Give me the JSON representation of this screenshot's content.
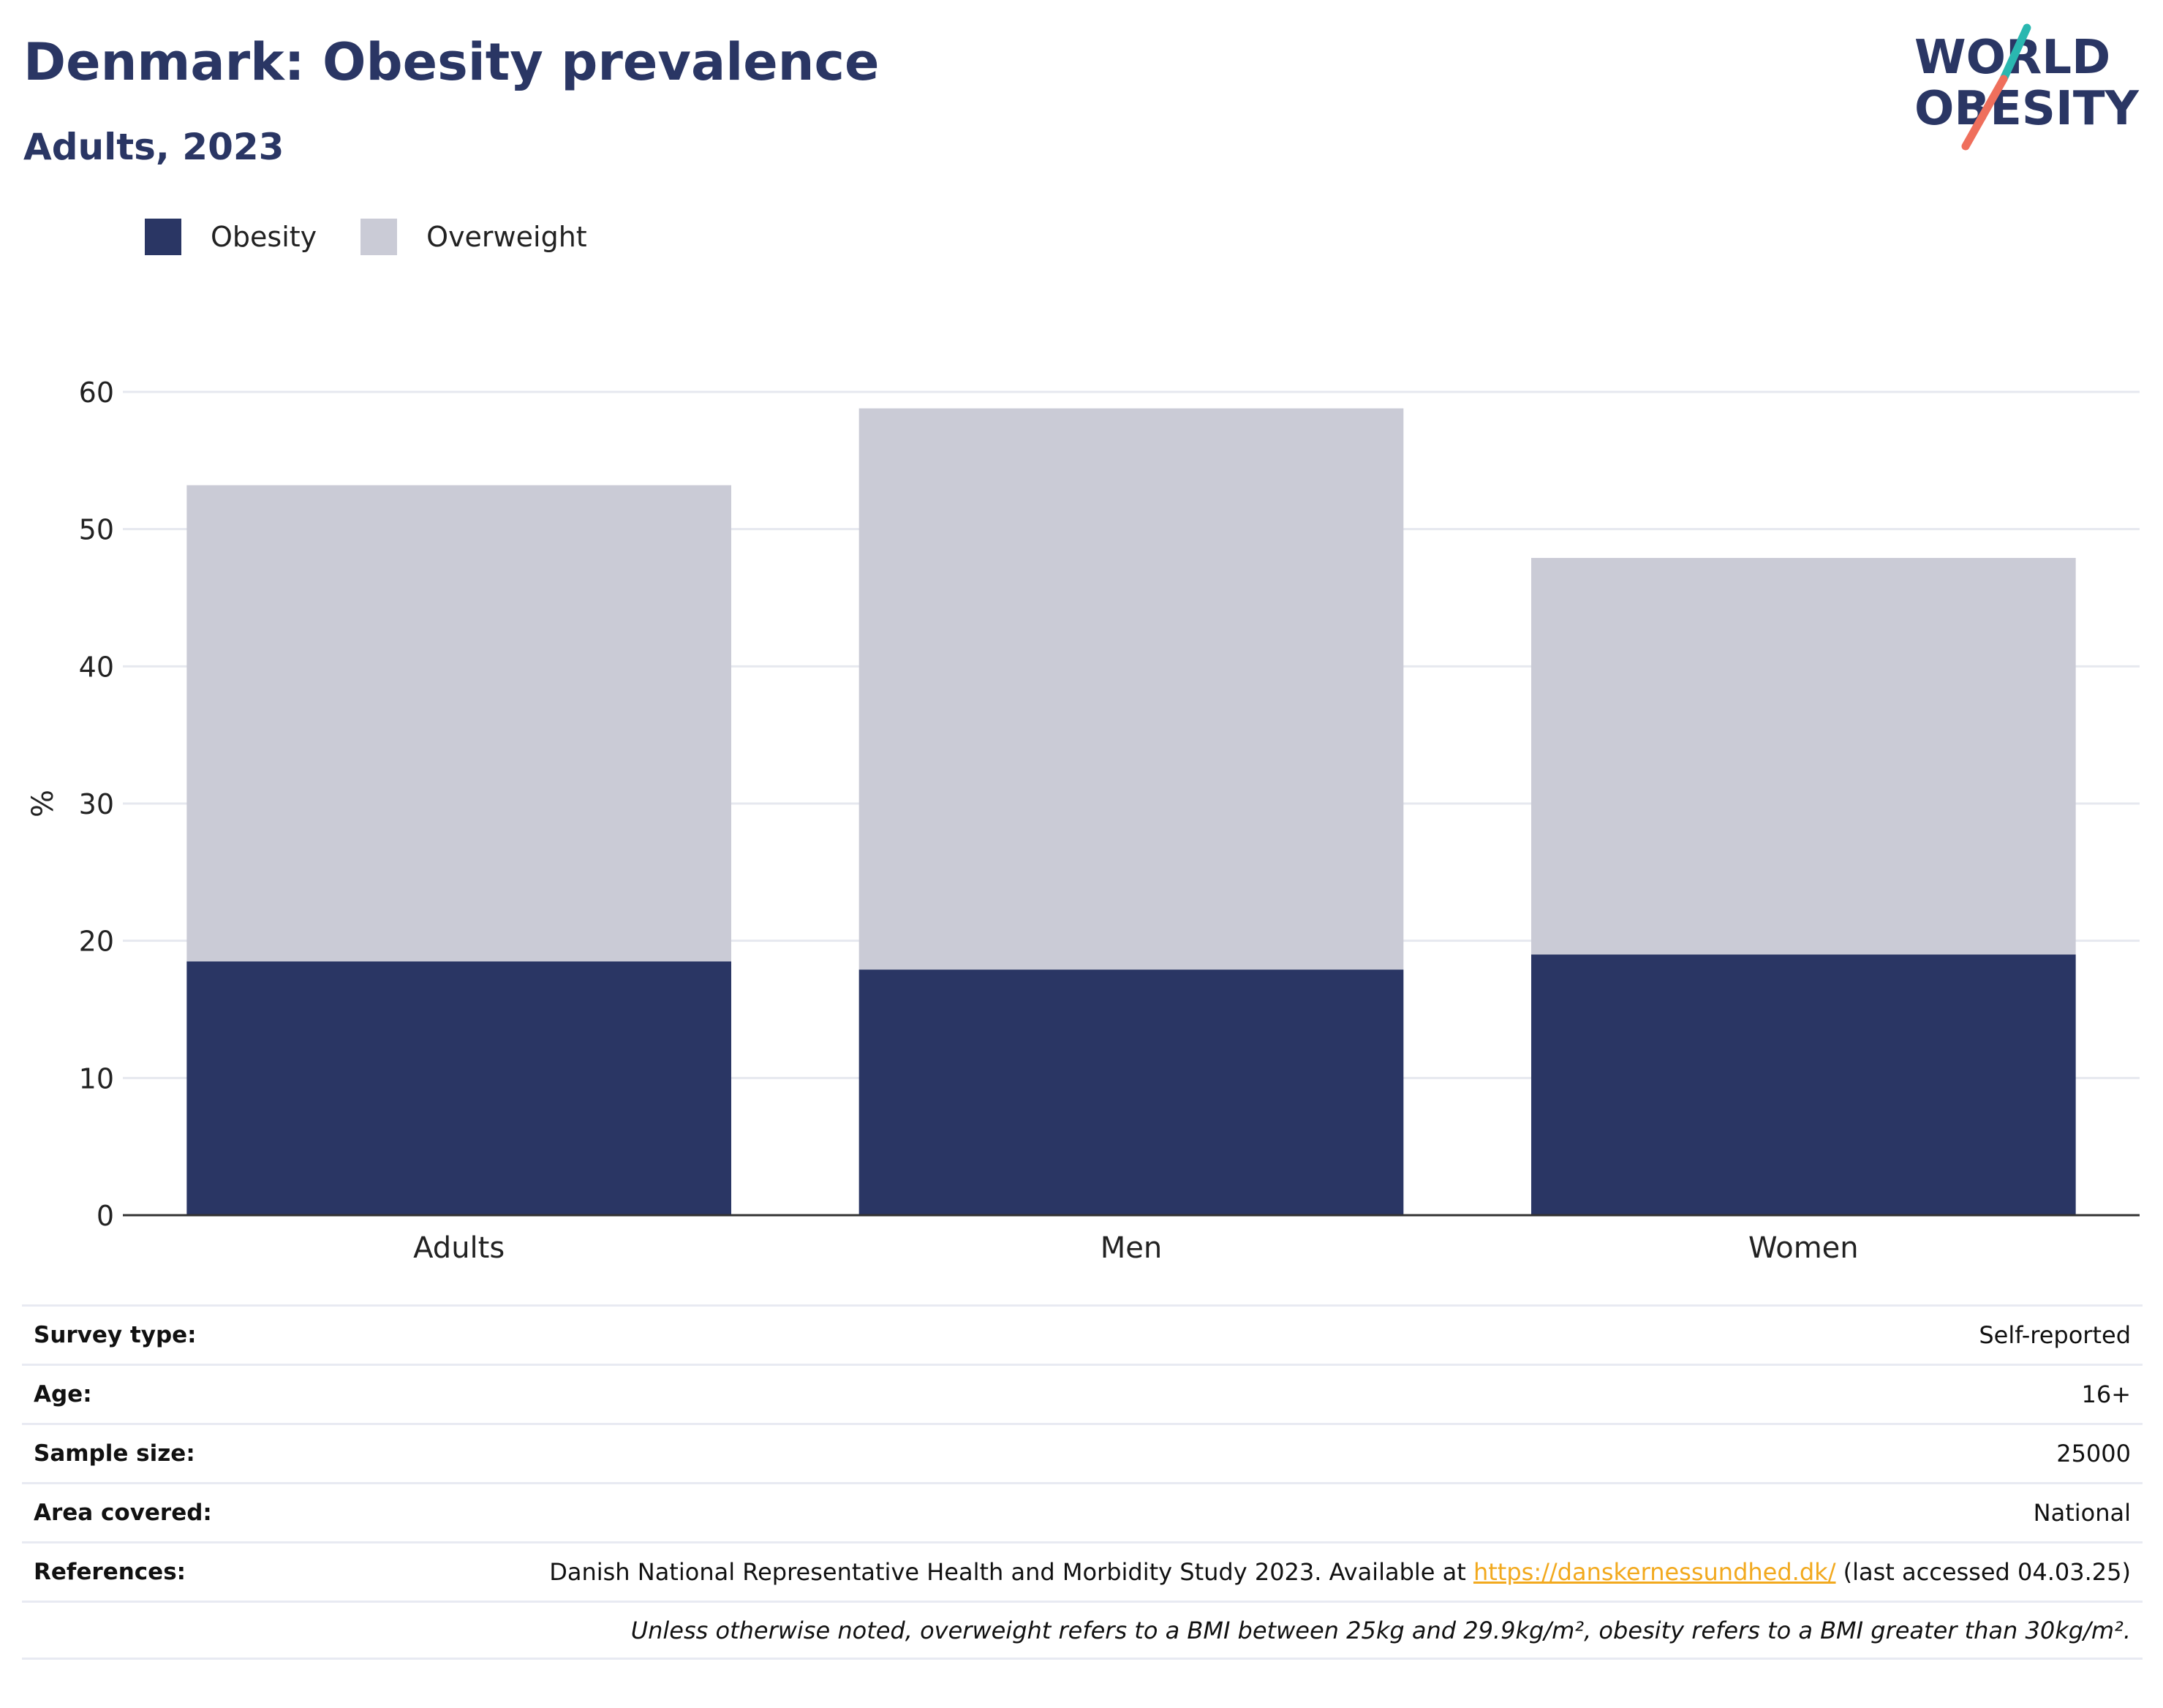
{
  "header": {
    "title": "Denmark: Obesity prevalence",
    "subtitle": "Adults, 2023"
  },
  "logo": {
    "line1": "WORLD",
    "line2": "OBESITY"
  },
  "colors": {
    "obesity": "#2a3664",
    "overweight": "#cacbd6",
    "accent_teal": "#2ab7b0",
    "accent_coral": "#ef6f5c",
    "link": "#f2a91e"
  },
  "chart_data": {
    "type": "bar",
    "stacked": true,
    "categories": [
      "Adults",
      "Men",
      "Women"
    ],
    "series": [
      {
        "name": "Obesity",
        "values": [
          18.5,
          17.9,
          19.0
        ]
      },
      {
        "name": "Overweight",
        "values": [
          34.7,
          40.9,
          28.9
        ]
      }
    ],
    "ylabel": "%",
    "ylim": [
      0,
      60
    ],
    "yticks": [
      0,
      10,
      20,
      30,
      40,
      50,
      60
    ],
    "grid": true,
    "legend": "top-left"
  },
  "details": {
    "survey_type_label": "Survey type:",
    "survey_type_value": "Self-reported",
    "age_label": "Age:",
    "age_value": "16+",
    "sample_size_label": "Sample size:",
    "sample_size_value": "25000",
    "area_label": "Area covered:",
    "area_value": "National",
    "references_label": "References:",
    "references_text_before": "Danish National Representative Health and Morbidity Study 2023. Available at ",
    "references_link": "https://danskernessundhed.dk/",
    "references_text_after": " (last accessed 04.03.25)",
    "note": "Unless otherwise noted, overweight refers to a BMI between 25kg and 29.9kg/m², obesity refers to a BMI greater than 30kg/m²."
  }
}
